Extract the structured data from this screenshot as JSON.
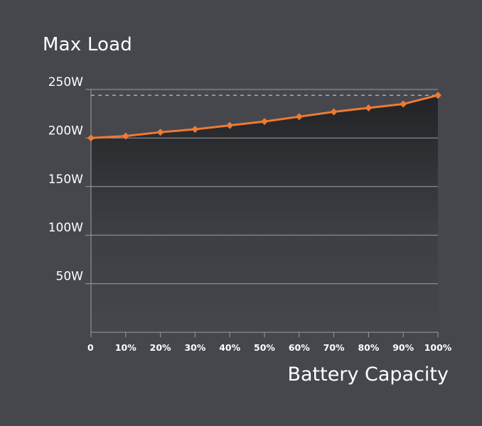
{
  "colors": {
    "background": "#45474d",
    "line": "#ee7a33",
    "grid": "#9b9da3",
    "area_top": "#222326"
  },
  "chart_data": {
    "type": "area",
    "title": "Max Load",
    "xlabel": "Battery Capacity",
    "ylabel": "",
    "x": [
      0,
      10,
      20,
      30,
      40,
      50,
      60,
      70,
      80,
      90,
      100
    ],
    "x_tick_labels": [
      "0",
      "10%",
      "20%",
      "30%",
      "40%",
      "50%",
      "60%",
      "70%",
      "80%",
      "90%",
      "100%"
    ],
    "values": [
      200,
      202,
      206,
      209,
      213,
      217,
      222,
      227,
      231,
      235,
      244
    ],
    "y_ticks": [
      50,
      100,
      150,
      200,
      250
    ],
    "y_tick_labels": [
      "50W",
      "100W",
      "150W",
      "200W",
      "250W"
    ],
    "xlim": [
      0,
      100
    ],
    "ylim": [
      0,
      250
    ],
    "reference_line": {
      "value": 244,
      "style": "dashed"
    },
    "grid": true,
    "markers": "diamond",
    "legend": "none"
  }
}
